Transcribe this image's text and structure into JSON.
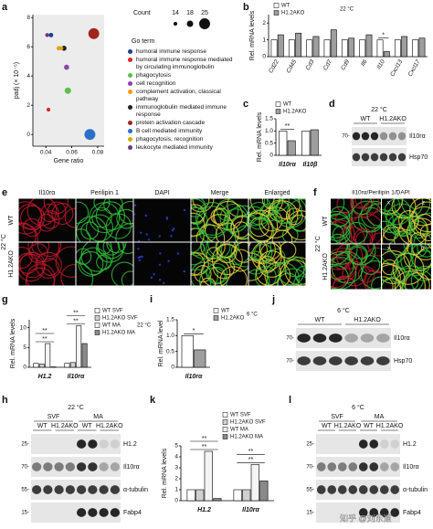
{
  "panel_labels": [
    "a",
    "b",
    "c",
    "d",
    "e",
    "f",
    "g",
    "h",
    "i",
    "j",
    "k",
    "l"
  ],
  "chart_data": [
    {
      "type": "scatter",
      "xlabel": "Gene ratio",
      "ylabel": "padj (× 10⁻⁵)",
      "xlim": [
        0.03,
        0.085
      ],
      "xticks": [
        0.04,
        0.06,
        0.08
      ],
      "ylim": [
        -0.8,
        8.2
      ],
      "yticks": [
        0,
        2,
        4,
        6,
        8
      ],
      "size_title": "Count",
      "size_legend": [
        14,
        18,
        25
      ],
      "legend_title": "Go term",
      "series": [
        {
          "name": "humoral immune response",
          "color": "#1f3f8c",
          "x": [
            0.044
          ],
          "values": [
            6.8
          ],
          "sizes": [
            15
          ]
        },
        {
          "name": "humoral immune response mediated by circulating immunoglobulin",
          "color": "#d62728",
          "x": [
            0.042
          ],
          "values": [
            1.7
          ],
          "sizes": [
            14
          ]
        },
        {
          "name": "phagocytosis",
          "color": "#5cbf4a",
          "x": [
            0.057
          ],
          "values": [
            3.0
          ],
          "sizes": [
            18
          ]
        },
        {
          "name": "cell recognition",
          "color": "#8e44ad",
          "x": [
            0.056
          ],
          "values": [
            4.6
          ],
          "sizes": [
            16
          ]
        },
        {
          "name": "complement activation, classical pathway",
          "color": "#f39c12",
          "x": [
            0.05
          ],
          "values": [
            5.9
          ],
          "sizes": [
            15
          ]
        },
        {
          "name": "immunoglobulin mediated immune response",
          "color": "#222222",
          "x": [
            0.054
          ],
          "values": [
            5.9
          ],
          "sizes": [
            16
          ]
        },
        {
          "name": "protein activation cascade",
          "color": "#a0251e",
          "x": [
            0.077
          ],
          "values": [
            6.9
          ],
          "sizes": [
            25
          ]
        },
        {
          "name": "B cell mediated immunity",
          "color": "#2a6fc9",
          "x": [
            0.074
          ],
          "values": [
            0
          ],
          "sizes": [
            25
          ]
        },
        {
          "name": "phagocytosis, recognition",
          "color": "#d4ac0d",
          "x": [
            0.052
          ],
          "values": [
            5.9
          ],
          "sizes": [
            14
          ]
        },
        {
          "name": "leukocyte mediated immunity",
          "color": "#6c3483",
          "x": [
            0.041
          ],
          "values": [
            6.8
          ],
          "sizes": [
            14
          ]
        }
      ]
    },
    {
      "type": "bar",
      "ylabel": "Rel. mRNA levels",
      "categories": [
        "Cd22",
        "Cd45",
        "Cd3",
        "Cd7",
        "Cd9",
        "Il6",
        "Il10",
        "Cxcl13",
        "Cxcl17"
      ],
      "series": [
        {
          "name": "WT",
          "color": "#ffffff",
          "values": [
            1,
            1,
            1,
            1,
            1,
            1,
            1,
            1,
            1
          ]
        },
        {
          "name": "H1.2AKO",
          "color": "#9e9e9e",
          "values": [
            1.3,
            1.4,
            1.2,
            1.6,
            1.1,
            1.3,
            0.3,
            1.2,
            1.1
          ]
        }
      ],
      "ylim": [
        0,
        2.5
      ],
      "yticks": [
        0,
        1,
        2
      ],
      "temperature": "22 °C",
      "annotations": [
        "*"
      ]
    },
    {
      "type": "bar",
      "ylabel": "Rel. mRNA levels",
      "categories": [
        "Il10rα",
        "Il10β"
      ],
      "series": [
        {
          "name": "WT",
          "color": "#ffffff",
          "values": [
            1,
            1
          ]
        },
        {
          "name": "H1.2AKO",
          "color": "#9e9e9e",
          "values": [
            0.6,
            1.05
          ]
        }
      ],
      "ylim": [
        0,
        1.5
      ],
      "yticks": [
        0,
        0.5,
        {
          "value": 1,
          "label": "1.0"
        },
        1.5
      ],
      "annotations": [
        "**"
      ]
    },
    {
      "type": "bar",
      "ylabel": "Rel. mRNA levels",
      "categories": [
        "H1.2",
        "Il10rα"
      ],
      "series": [
        {
          "name": "WT SVF",
          "color": "#ffffff",
          "values": [
            1,
            1
          ]
        },
        {
          "name": "H1.2AKO SVF",
          "color": "#d0d0d0",
          "values": [
            0.8,
            1.2
          ]
        },
        {
          "name": "WT MA",
          "color": "#f4f4f4",
          "values": [
            6,
            10.5
          ]
        },
        {
          "name": "H1.2AKO MA",
          "color": "#8a8a8a",
          "values": [
            0.1,
            6
          ]
        }
      ],
      "ylim": [
        0,
        12
      ],
      "yticks": [
        0,
        5,
        10
      ],
      "temperature": "22 °C",
      "annotations": [
        "**",
        "**",
        "**",
        "**"
      ]
    },
    {
      "type": "bar",
      "ylabel": "Rel. mRNA level",
      "categories": [
        "Il10rα"
      ],
      "series": [
        {
          "name": "WT",
          "color": "#ffffff",
          "values": [
            1
          ]
        },
        {
          "name": "H1.2AKO",
          "color": "#9e9e9e",
          "values": [
            0.55
          ]
        }
      ],
      "ylim": [
        0,
        1.5
      ],
      "yticks": [
        0,
        0.5,
        {
          "value": 1,
          "label": "1.0"
        },
        1.5
      ],
      "temperature": "6 °C",
      "annotations": [
        "*"
      ]
    },
    {
      "type": "bar",
      "ylabel": "Rel. mRNA levels",
      "categories": [
        "H1.2",
        "Il10rα"
      ],
      "series": [
        {
          "name": "WT SVF",
          "color": "#ffffff",
          "values": [
            1,
            1
          ]
        },
        {
          "name": "H1.2AKO SVF",
          "color": "#d0d0d0",
          "values": [
            1,
            1
          ]
        },
        {
          "name": "WT MA",
          "color": "#f4f4f4",
          "values": [
            4.5,
            3.3
          ]
        },
        {
          "name": "H1.2AKO MA",
          "color": "#8a8a8a",
          "values": [
            0.2,
            1.8
          ]
        }
      ],
      "ylim": [
        0,
        5
      ],
      "yticks": [
        0,
        1,
        2,
        3,
        4,
        5
      ],
      "annotations": [
        "**",
        "**",
        "**",
        "**"
      ]
    }
  ],
  "images": {
    "e": {
      "channels": [
        "Il10rα",
        "Perilipin 1",
        "DAPI",
        "Merge",
        "Enlarged"
      ],
      "rows": [
        "WT",
        "H1.2AKO"
      ],
      "temperature": "22 °C"
    },
    "f": {
      "title": "Il10rα/Perilipin 1/DAPI",
      "rows": [
        "WT",
        "H1.2AKO"
      ],
      "temperature": "22 °C",
      "axes": [
        "x",
        "z"
      ]
    }
  },
  "blots": {
    "d": {
      "temperature": "22 °C",
      "groups": [
        "WT",
        "H1.2AKO"
      ],
      "proteins": [
        "Il10rα",
        "Hsp70"
      ],
      "markers": [
        "70-"
      ]
    },
    "h": {
      "temperature": "22 °C",
      "fractions": [
        "SVF",
        "MA"
      ],
      "groups": [
        "WT",
        "H1.2AKO"
      ],
      "proteins": [
        "H1.2",
        "Il10rα",
        "α-tubulin",
        "Fabp4"
      ],
      "markers": [
        "25-",
        "70-",
        "55-",
        "15-"
      ]
    },
    "j": {
      "temperature": "6 °C",
      "groups": [
        "WT",
        "H1.2AKO"
      ],
      "proteins": [
        "Il10rα",
        "Hsp70"
      ],
      "markers": [
        "70-",
        "70-"
      ]
    },
    "l": {
      "temperature": "6 °C",
      "fractions": [
        "SVF",
        "MA"
      ],
      "groups": [
        "WT",
        "H1.2AKO"
      ],
      "proteins": [
        "H1.2",
        "Il10rα",
        "α-tubulin",
        "Fabp4"
      ],
      "markers": [
        "25-",
        "70-",
        "55-",
        "15-"
      ]
    }
  },
  "watermark": "知乎 @刘东道"
}
